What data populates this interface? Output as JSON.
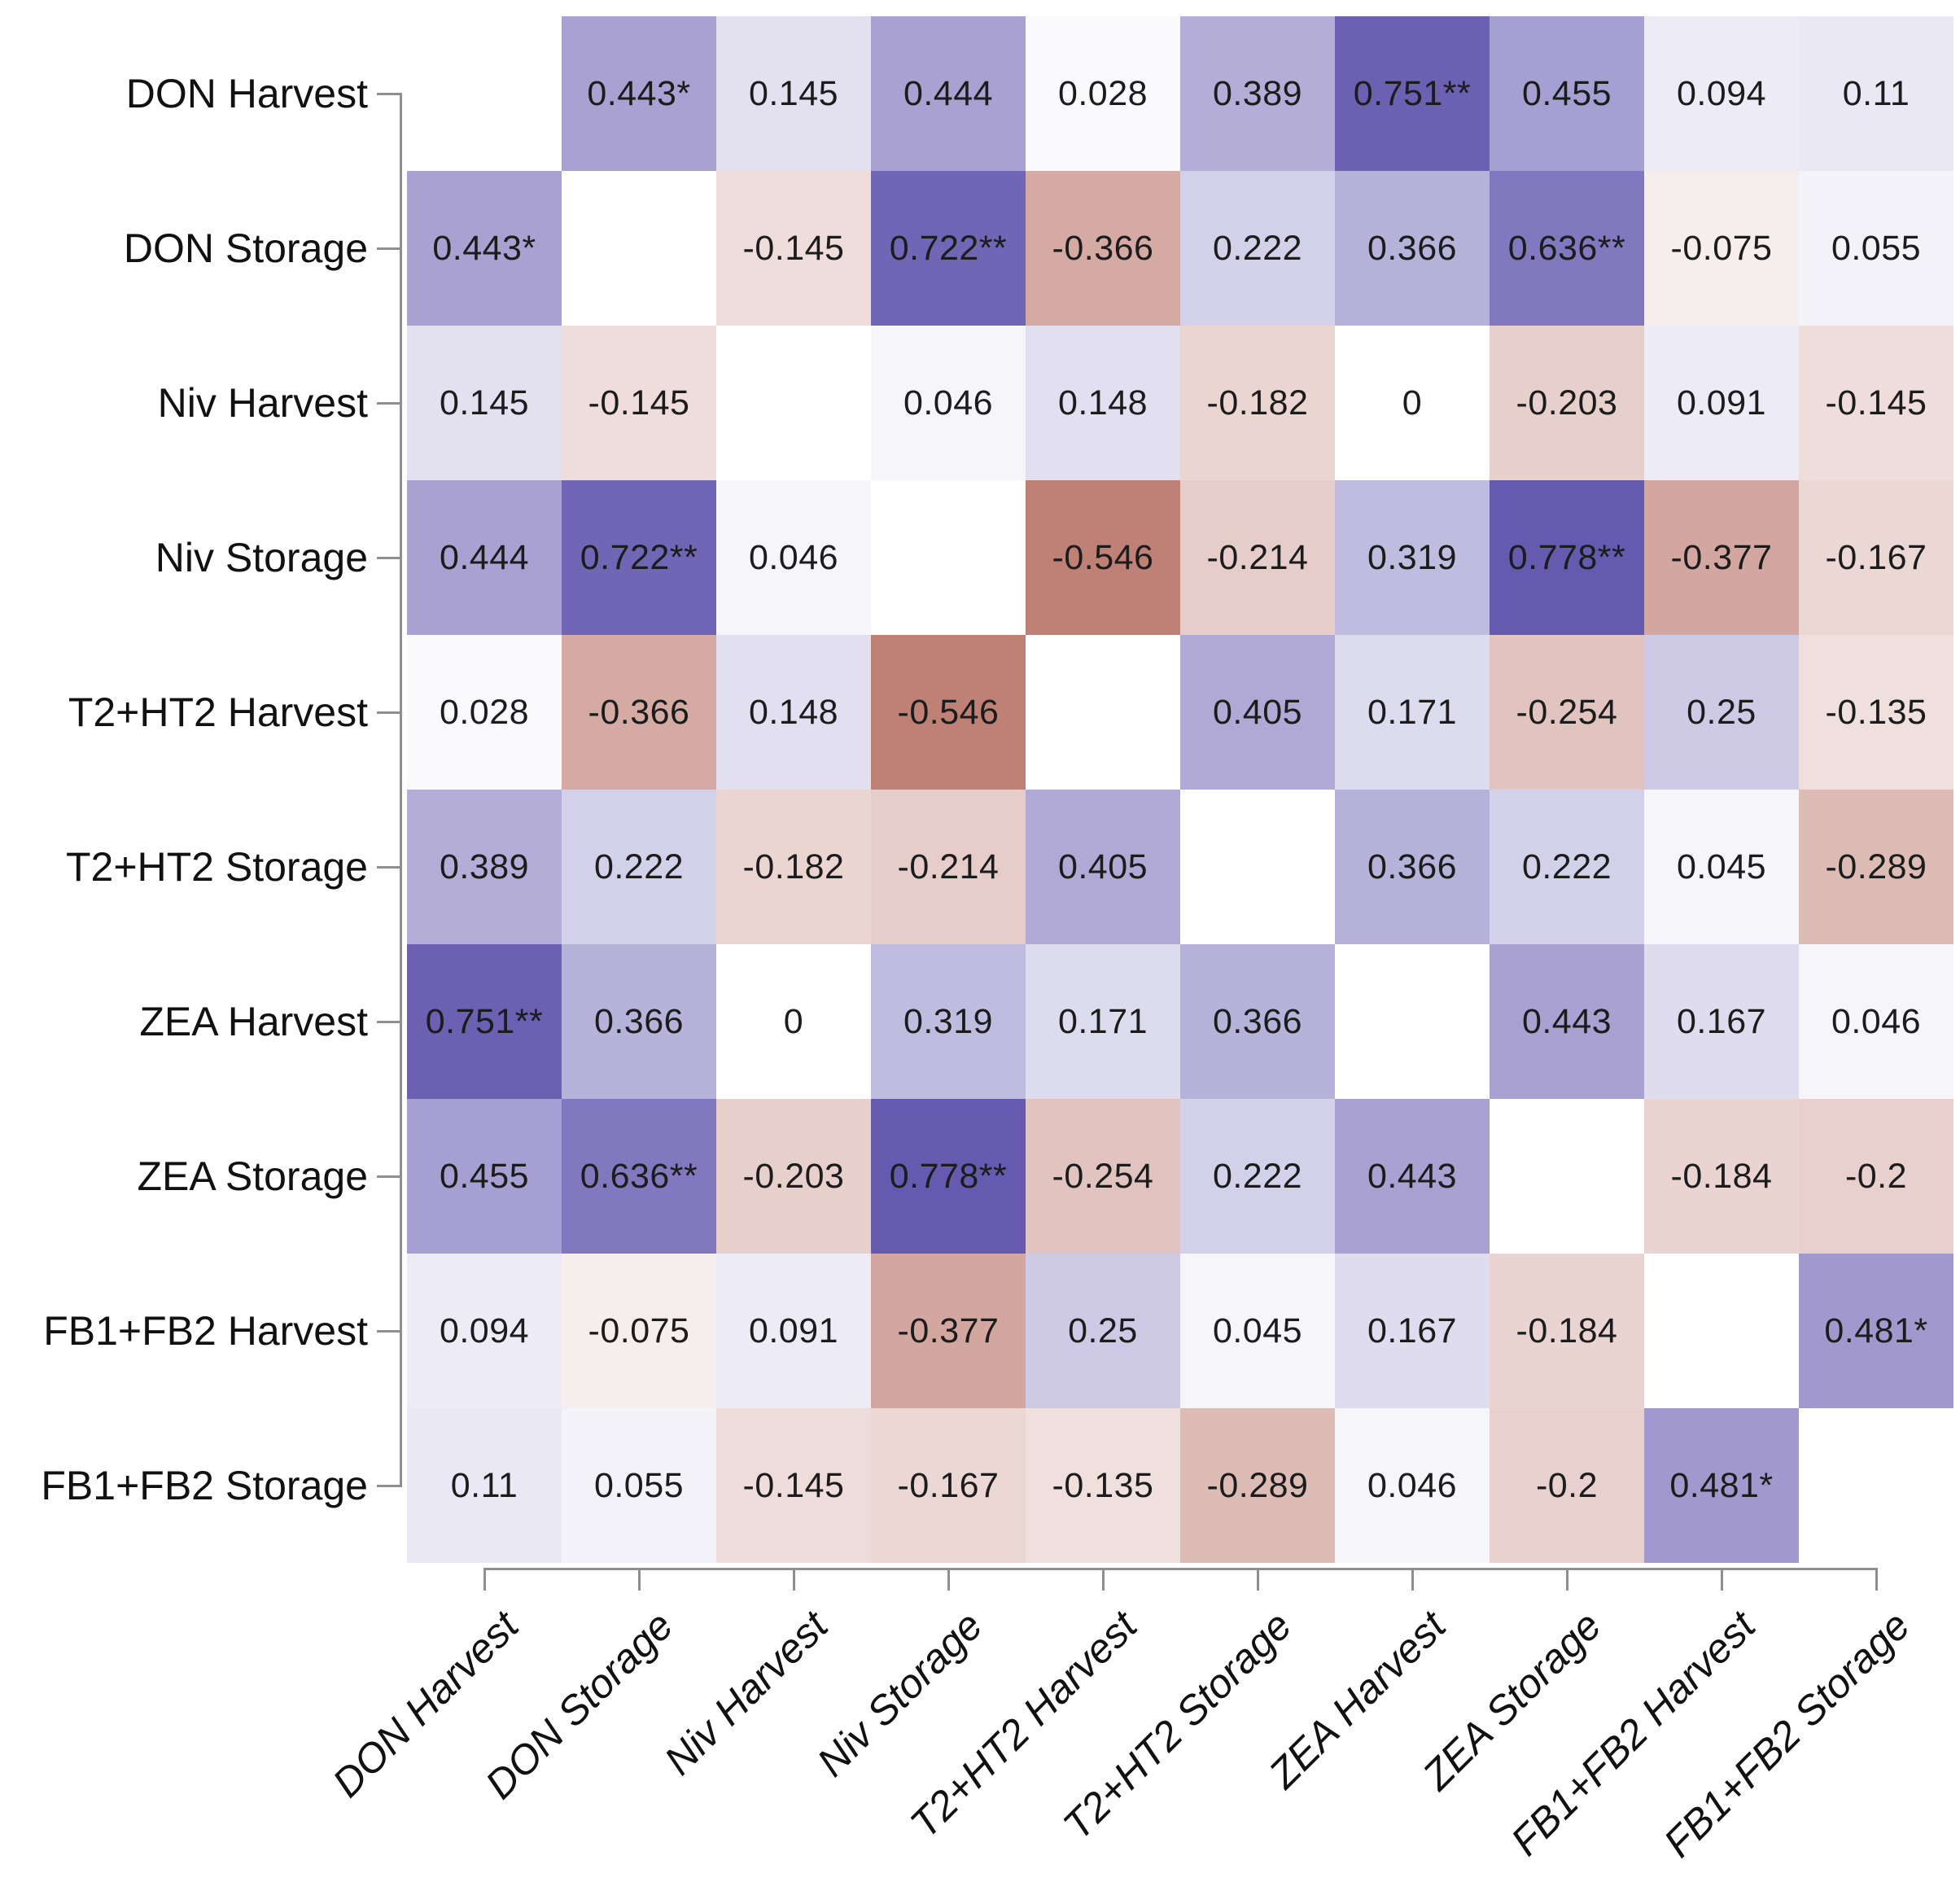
{
  "chart_data": {
    "type": "heatmap",
    "title": "",
    "description_visible": "pairwise correlation matrix of mycotoxin levels at harvest and after storage; blank white diagonal; purple = positive, brownish-red = negative; * and ** mark significant coefficients",
    "row_labels": [
      "DON Harvest",
      "DON Storage",
      "Niv Harvest",
      "Niv Storage",
      "T2+HT2 Harvest",
      "T2+HT2 Storage",
      "ZEA Harvest",
      "ZEA Storage",
      "FB1+FB2 Harvest",
      "FB1+FB2 Storage"
    ],
    "col_labels": [
      "DON Harvest",
      "DON Storage",
      "Niv Harvest",
      "Niv Storage",
      "T2+HT2 Harvest",
      "T2+HT2 Storage",
      "ZEA Harvest",
      "ZEA Storage",
      "FB1+FB2 Harvest",
      "FB1+FB2 Storage"
    ],
    "cells": [
      [
        "",
        "0.443*",
        "0.145",
        "0.444",
        "0.028",
        "0.389",
        "0.751**",
        "0.455",
        "0.094",
        "0.11"
      ],
      [
        "0.443*",
        "",
        "-0.145",
        "0.722**",
        "-0.366",
        "0.222",
        "0.366",
        "0.636**",
        "-0.075",
        "0.055"
      ],
      [
        "0.145",
        "-0.145",
        "",
        "0.046",
        "0.148",
        "-0.182",
        "0",
        "-0.203",
        "0.091",
        "-0.145"
      ],
      [
        "0.444",
        "0.722**",
        "0.046",
        "",
        "-0.546",
        "-0.214",
        "0.319",
        "0.778**",
        "-0.377",
        "-0.167"
      ],
      [
        "0.028",
        "-0.366",
        "0.148",
        "-0.546",
        "",
        "0.405",
        "0.171",
        "-0.254",
        "0.25",
        "-0.135"
      ],
      [
        "0.389",
        "0.222",
        "-0.182",
        "-0.214",
        "0.405",
        "",
        "0.366",
        "0.222",
        "0.045",
        "-0.289"
      ],
      [
        "0.751**",
        "0.366",
        "0",
        "0.319",
        "0.171",
        "0.366",
        "",
        "0.443",
        "0.167",
        "0.046"
      ],
      [
        "0.455",
        "0.636**",
        "-0.203",
        "0.778**",
        "-0.254",
        "0.222",
        "0.443",
        "",
        "-0.184",
        "-0.2"
      ],
      [
        "0.094",
        "-0.075",
        "0.091",
        "-0.377",
        "0.25",
        "0.045",
        "0.167",
        "-0.184",
        "",
        "0.481*"
      ],
      [
        "0.11",
        "0.055",
        "-0.145",
        "-0.167",
        "-0.135",
        "-0.289",
        "0.046",
        "-0.2",
        "0.481*",
        ""
      ]
    ],
    "colormap": {
      "positive_max_color": "#665ab0",
      "negative_max_color": "#a3493b",
      "zero_color": "#ffffff",
      "abs_scale_max": 0.78
    },
    "layout_hints": {
      "x_tick_label_rotation_deg": -45,
      "x_tick_labels_italic": true,
      "diagonal": "blank white"
    }
  }
}
